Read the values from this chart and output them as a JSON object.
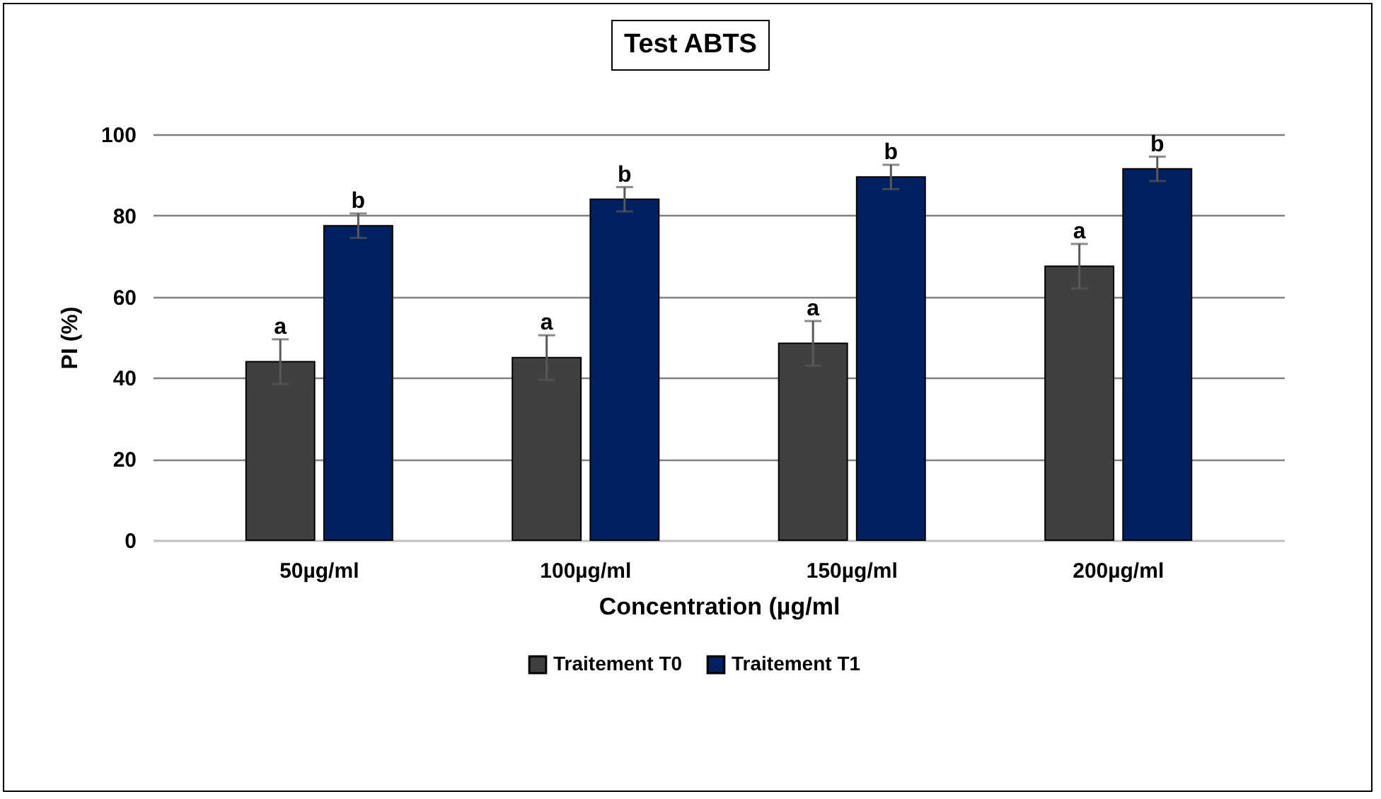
{
  "chart_data": {
    "type": "bar",
    "title": "Test ABTS",
    "xlabel": "Concentration (µg/ml",
    "ylabel": "PI (%)",
    "categories": [
      "50µg/ml",
      "100µg/ml",
      "150µg/ml",
      "200µg/ml"
    ],
    "series": [
      {
        "name": "Traitement T0",
        "color": "#404040",
        "values": [
          44,
          45,
          48.5,
          67.5
        ],
        "errors": [
          5.5,
          5.5,
          5.5,
          5.5
        ]
      },
      {
        "name": "Traitement T1",
        "color": "#002060",
        "values": [
          77.5,
          84,
          89.5,
          91.5
        ],
        "errors": [
          3,
          3,
          3,
          3
        ]
      }
    ],
    "ylim": [
      0,
      100
    ],
    "yticks": [
      0,
      20,
      40,
      60,
      80,
      100
    ],
    "grid": "y",
    "legend": "bottom",
    "annotations": [
      {
        "text": "a",
        "x": "50µg/ml",
        "y": 44
      },
      {
        "text": "b",
        "x": "50µg/ml",
        "y": 77.5
      },
      {
        "text": "a",
        "x": "100µg/ml",
        "y": 45
      },
      {
        "text": "b",
        "x": "100µg/ml",
        "y": 84
      },
      {
        "text": "a",
        "x": "150µg/ml",
        "y": 48.5
      },
      {
        "text": "b",
        "x": "150µg/ml",
        "y": 89.5
      },
      {
        "text": "a",
        "x": "200µg/ml",
        "y": 67.5
      },
      {
        "text": "b",
        "x": "200µg/ml",
        "y": 91.5
      }
    ]
  }
}
